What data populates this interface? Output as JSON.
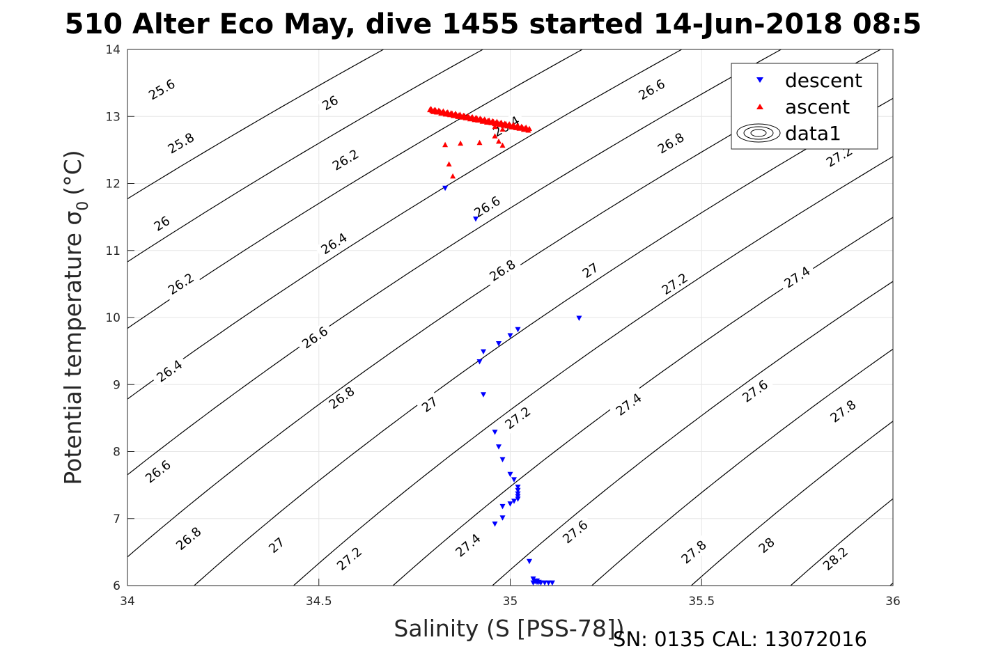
{
  "chart_data": {
    "type": "scatter",
    "title": "510 Alter Eco May, dive 1455 started 14-Jun-2018 08:5",
    "xlabel": "Salinity (S [PSS-78])",
    "ylabel": "Potential temperature σ",
    "ylabel_sub": "0",
    "ylabel_unit": "(°C)",
    "footer": "SN: 0135  CAL: 13072016",
    "xlim": [
      34,
      36
    ],
    "ylim": [
      6,
      14
    ],
    "xticks": [
      "34",
      "34.5",
      "35",
      "35.5",
      "36"
    ],
    "yticks": [
      "6",
      "7",
      "8",
      "9",
      "10",
      "11",
      "12",
      "13",
      "14"
    ],
    "grid": true,
    "legend_position": "top-right",
    "legend": [
      "descent",
      "ascent",
      "data1"
    ],
    "contour_levels": [
      25.6,
      25.8,
      26,
      26.2,
      26.4,
      26.6,
      26.8,
      27,
      27.2,
      27.4,
      27.6,
      27.8,
      28,
      28.2
    ],
    "contour_labels": [
      {
        "text": "25.6",
        "s": 34.09,
        "t": 13.4
      },
      {
        "text": "25.8",
        "s": 34.14,
        "t": 12.6
      },
      {
        "text": "26",
        "s": 34.09,
        "t": 11.4
      },
      {
        "text": "26.2",
        "s": 34.14,
        "t": 10.5
      },
      {
        "text": "26.4",
        "s": 34.11,
        "t": 9.2
      },
      {
        "text": "26.6",
        "s": 34.08,
        "t": 7.7
      },
      {
        "text": "26.8",
        "s": 34.16,
        "t": 6.7
      },
      {
        "text": "27",
        "s": 34.39,
        "t": 6.6
      },
      {
        "text": "27.2",
        "s": 34.58,
        "t": 6.4
      },
      {
        "text": "26",
        "s": 34.53,
        "t": 13.2
      },
      {
        "text": "26.2",
        "s": 34.57,
        "t": 12.35
      },
      {
        "text": "26.4",
        "s": 34.54,
        "t": 11.1
      },
      {
        "text": "26.6",
        "s": 34.49,
        "t": 9.7
      },
      {
        "text": "26.8",
        "s": 34.56,
        "t": 8.8
      },
      {
        "text": "27",
        "s": 34.79,
        "t": 8.7
      },
      {
        "text": "27.2",
        "s": 35.02,
        "t": 8.5
      },
      {
        "text": "27.4",
        "s": 34.89,
        "t": 6.6
      },
      {
        "text": "26.4",
        "s": 34.99,
        "t": 12.85
      },
      {
        "text": "26.6",
        "s": 34.94,
        "t": 11.65
      },
      {
        "text": "26.8",
        "s": 34.98,
        "t": 10.7
      },
      {
        "text": "27",
        "s": 35.21,
        "t": 10.7
      },
      {
        "text": "27.2",
        "s": 35.43,
        "t": 10.5
      },
      {
        "text": "27.4",
        "s": 35.31,
        "t": 8.7
      },
      {
        "text": "27.6",
        "s": 35.17,
        "t": 6.8
      },
      {
        "text": "26.6",
        "s": 35.37,
        "t": 13.4
      },
      {
        "text": "26.8",
        "s": 35.42,
        "t": 12.6
      },
      {
        "text": "27.4",
        "s": 35.75,
        "t": 10.6
      },
      {
        "text": "27.6",
        "s": 35.64,
        "t": 8.9
      },
      {
        "text": "27.8",
        "s": 35.48,
        "t": 6.5
      },
      {
        "text": "28",
        "s": 35.67,
        "t": 6.6
      },
      {
        "text": "28.2",
        "s": 35.85,
        "t": 6.4
      },
      {
        "text": "27.8",
        "s": 35.87,
        "t": 8.6
      },
      {
        "text": "27.2",
        "s": 35.86,
        "t": 12.4
      }
    ],
    "series": [
      {
        "name": "descent",
        "marker": "triangle-down",
        "color": "#0000ff",
        "points": [
          [
            34.83,
            11.93
          ],
          [
            34.91,
            11.47
          ],
          [
            35.18,
            9.99
          ],
          [
            35.02,
            9.82
          ],
          [
            35.0,
            9.73
          ],
          [
            34.97,
            9.61
          ],
          [
            34.93,
            9.49
          ],
          [
            34.92,
            9.34
          ],
          [
            34.93,
            8.85
          ],
          [
            34.96,
            8.29
          ],
          [
            34.97,
            8.07
          ],
          [
            34.98,
            7.88
          ],
          [
            35.0,
            7.66
          ],
          [
            35.01,
            7.58
          ],
          [
            35.02,
            7.47
          ],
          [
            35.02,
            7.42
          ],
          [
            35.02,
            7.37
          ],
          [
            35.02,
            7.33
          ],
          [
            35.02,
            7.29
          ],
          [
            35.01,
            7.26
          ],
          [
            35.0,
            7.22
          ],
          [
            34.98,
            7.18
          ],
          [
            34.98,
            7.01
          ],
          [
            34.96,
            6.92
          ],
          [
            35.05,
            6.36
          ],
          [
            35.06,
            6.1
          ],
          [
            35.07,
            6.07
          ],
          [
            35.07,
            6.05
          ],
          [
            35.08,
            6.04
          ],
          [
            35.09,
            6.04
          ],
          [
            35.1,
            6.04
          ],
          [
            35.11,
            6.04
          ],
          [
            35.06,
            6.04
          ],
          [
            35.065,
            6.06
          ],
          [
            35.075,
            6.05
          ]
        ]
      },
      {
        "name": "ascent",
        "marker": "triangle-up",
        "color": "#ff0000",
        "points": [
          [
            34.83,
            12.58
          ],
          [
            34.87,
            12.6
          ],
          [
            34.84,
            12.29
          ],
          [
            34.85,
            12.11
          ],
          [
            34.92,
            12.61
          ],
          [
            34.96,
            12.71
          ],
          [
            34.97,
            12.63
          ],
          [
            34.98,
            12.57
          ],
          [
            34.96,
            12.85
          ],
          [
            34.98,
            12.81
          ]
        ],
        "band": {
          "s_start": 34.79,
          "t_start": 13.1,
          "s_end": 35.05,
          "t_end": 12.81,
          "count": 90
        }
      }
    ]
  }
}
